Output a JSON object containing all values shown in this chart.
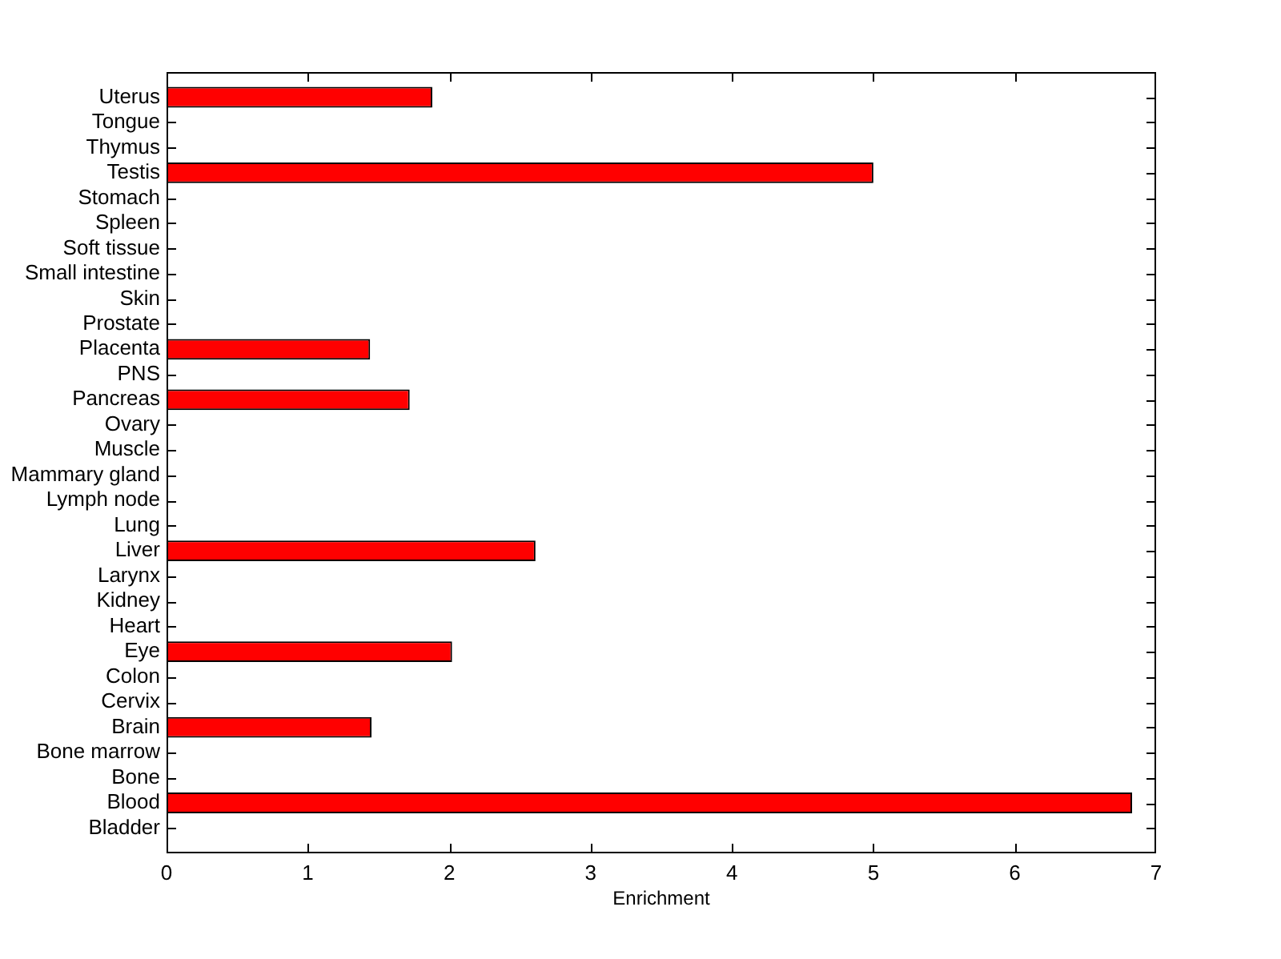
{
  "chart_data": {
    "type": "bar",
    "orientation": "horizontal",
    "xlabel": "Enrichment",
    "categories": [
      "Uterus",
      "Tongue",
      "Thymus",
      "Testis",
      "Stomach",
      "Spleen",
      "Soft tissue",
      "Small intestine",
      "Skin",
      "Prostate",
      "Placenta",
      "PNS",
      "Pancreas",
      "Ovary",
      "Muscle",
      "Mammary gland",
      "Lymph node",
      "Lung",
      "Liver",
      "Larynx",
      "Kidney",
      "Heart",
      "Eye",
      "Colon",
      "Cervix",
      "Brain",
      "Bone marrow",
      "Bone",
      "Blood",
      "Bladder"
    ],
    "values": [
      1.88,
      0,
      0,
      5.0,
      0,
      0,
      0,
      0,
      0,
      0,
      1.44,
      0,
      1.72,
      0,
      0,
      0,
      0,
      0,
      2.61,
      0,
      0,
      0,
      2.02,
      0,
      0,
      1.45,
      0,
      0,
      6.83,
      0
    ],
    "color": "#ff0000",
    "xlim": [
      0,
      7
    ],
    "xticks": [
      0,
      1,
      2,
      3,
      4,
      5,
      6,
      7
    ],
    "grid": false,
    "legend": false
  }
}
